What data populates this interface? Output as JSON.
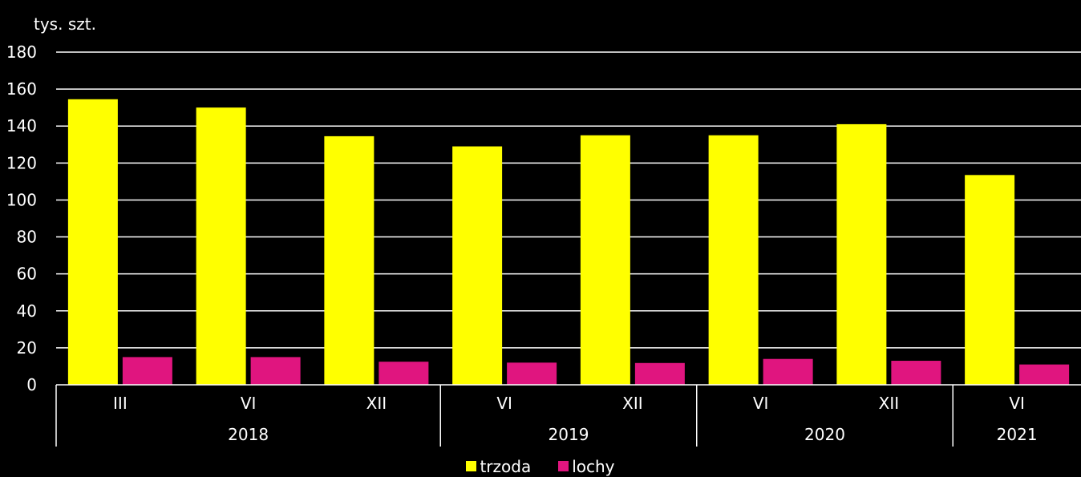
{
  "chart_data": {
    "type": "bar",
    "unit_label": "tys. szt.",
    "title": "",
    "xlabel": "",
    "ylabel": "tys. szt.",
    "ylim": [
      0,
      180
    ],
    "yticks": [
      0,
      20,
      40,
      60,
      80,
      100,
      120,
      140,
      160,
      180
    ],
    "categories": [
      "III",
      "VI",
      "XII",
      "VI",
      "XII",
      "VI",
      "XII",
      "VI"
    ],
    "groups": [
      {
        "label": "2018",
        "span": 3
      },
      {
        "label": "2019",
        "span": 2
      },
      {
        "label": "2020",
        "span": 2
      },
      {
        "label": "2021",
        "span": 1
      }
    ],
    "series": [
      {
        "name": "trzoda",
        "color": "#ffff00",
        "values": [
          154.5,
          150.0,
          134.5,
          129.0,
          135.0,
          135.0,
          141.0,
          113.5
        ]
      },
      {
        "name": "lochy",
        "color": "#e0157f",
        "values": [
          15.0,
          15.0,
          12.5,
          12.0,
          11.8,
          14.0,
          13.0,
          11.0
        ]
      }
    ],
    "grid": true,
    "legend_position": "bottom-center"
  }
}
